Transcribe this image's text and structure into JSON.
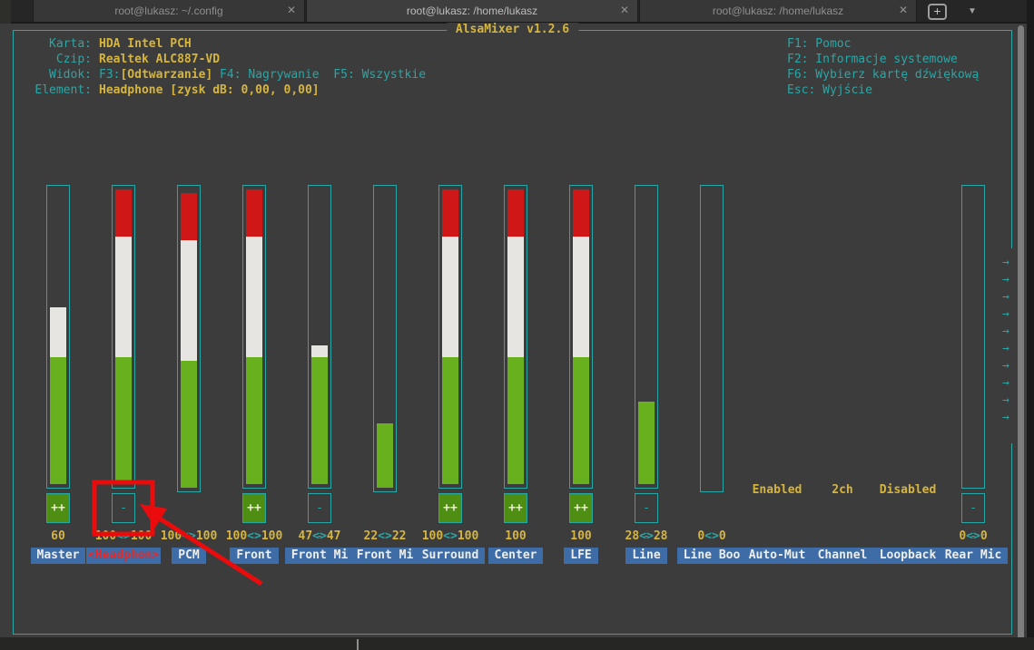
{
  "window": {
    "tabs": [
      {
        "title": "root@lukasz: ~/.config",
        "active": false
      },
      {
        "title": "root@lukasz: /home/lukasz",
        "active": true
      },
      {
        "title": "root@lukasz: /home/lukasz",
        "active": false
      }
    ],
    "close_glyph": "✕",
    "new_tab_glyph": "+",
    "dropdown_glyph": "▼"
  },
  "mixer": {
    "title": "AlsaMixer v1.2.6",
    "info_rows": [
      {
        "label": "Karta:",
        "segments": [
          {
            "text": "HDA Intel PCH",
            "style": "value"
          }
        ]
      },
      {
        "label": "Czip:",
        "segments": [
          {
            "text": "Realtek ALC887-VD",
            "style": "value"
          }
        ]
      },
      {
        "label": "Widok:",
        "segments": [
          {
            "text": "F3:",
            "style": "plain"
          },
          {
            "text": "[Odtwarzanie]",
            "style": "value"
          },
          {
            "text": " F4: Nagrywanie  F5: Wszystkie",
            "style": "plain"
          }
        ]
      },
      {
        "label": "Element:",
        "segments": [
          {
            "text": "Headphone [zysk dB: 0,00, 0,00]",
            "style": "value"
          }
        ]
      }
    ],
    "help": [
      "F1: Pomoc",
      "F2: Informacje systemowe",
      "F6: Wybierz kartę dźwiękową",
      "Esc: Wyjście"
    ],
    "switch_glyphs": {
      "on": "++",
      "off": "--"
    },
    "value_separator": "<>",
    "scroll_arrow_glyph": "→",
    "scroll_arrow_count": 10,
    "controls": [
      {
        "name": "Master",
        "selected": false,
        "values": [
          "60"
        ],
        "volume": 60,
        "bar": true,
        "switch": "on"
      },
      {
        "name": "Headphon",
        "selected": true,
        "values": [
          "100",
          "100"
        ],
        "volume": 100,
        "bar": true,
        "switch": "off"
      },
      {
        "name": "PCM",
        "selected": false,
        "values": [
          "100",
          "100"
        ],
        "volume": 100,
        "bar": true,
        "switch": null
      },
      {
        "name": "Front",
        "selected": false,
        "values": [
          "100",
          "100"
        ],
        "volume": 100,
        "bar": true,
        "switch": "on"
      },
      {
        "name": "Front Mi",
        "selected": false,
        "values": [
          "47",
          "47"
        ],
        "volume": 47,
        "bar": true,
        "switch": "off"
      },
      {
        "name": "Front Mi",
        "selected": false,
        "values": [
          "22",
          "22"
        ],
        "volume": 22,
        "bar": true,
        "switch": null
      },
      {
        "name": "Surround",
        "selected": false,
        "values": [
          "100",
          "100"
        ],
        "volume": 100,
        "bar": true,
        "switch": "on"
      },
      {
        "name": "Center",
        "selected": false,
        "values": [
          "100"
        ],
        "volume": 100,
        "bar": true,
        "switch": "on"
      },
      {
        "name": "LFE",
        "selected": false,
        "values": [
          "100"
        ],
        "volume": 100,
        "bar": true,
        "switch": "on"
      },
      {
        "name": "Line",
        "selected": false,
        "values": [
          "28",
          "28"
        ],
        "volume": 28,
        "bar": true,
        "switch": "off"
      },
      {
        "name": "Line Boo",
        "selected": false,
        "values": [
          "0",
          "0"
        ],
        "volume": 0,
        "bar": true,
        "switch": null
      },
      {
        "name": "Auto-Mut",
        "selected": false,
        "enum_value": "Enabled",
        "bar": false
      },
      {
        "name": "Channel",
        "selected": false,
        "enum_value": "2ch",
        "bar": false
      },
      {
        "name": "Loopback",
        "selected": false,
        "enum_value": "Disabled",
        "bar": false
      },
      {
        "name": "Rear Mic",
        "selected": false,
        "values": [
          "0",
          "0"
        ],
        "volume": 0,
        "bar": true,
        "switch": "off"
      }
    ]
  },
  "annotation": {
    "color": "#ea0c0c",
    "shapes": "rectangle and arrow highlighting Headphone mute switch"
  },
  "colors": {
    "accent_cyan": "#28a7a7",
    "text_yellow": "#d6b53e",
    "bar_green": "#68b01e",
    "bar_white": "#e7e5e2",
    "bar_red": "#d01717",
    "switch_green": "#4e8e12",
    "label_blue": "#3e6ca6",
    "selected_red": "#e22a2a",
    "annotation_red": "#ea0c0c"
  }
}
